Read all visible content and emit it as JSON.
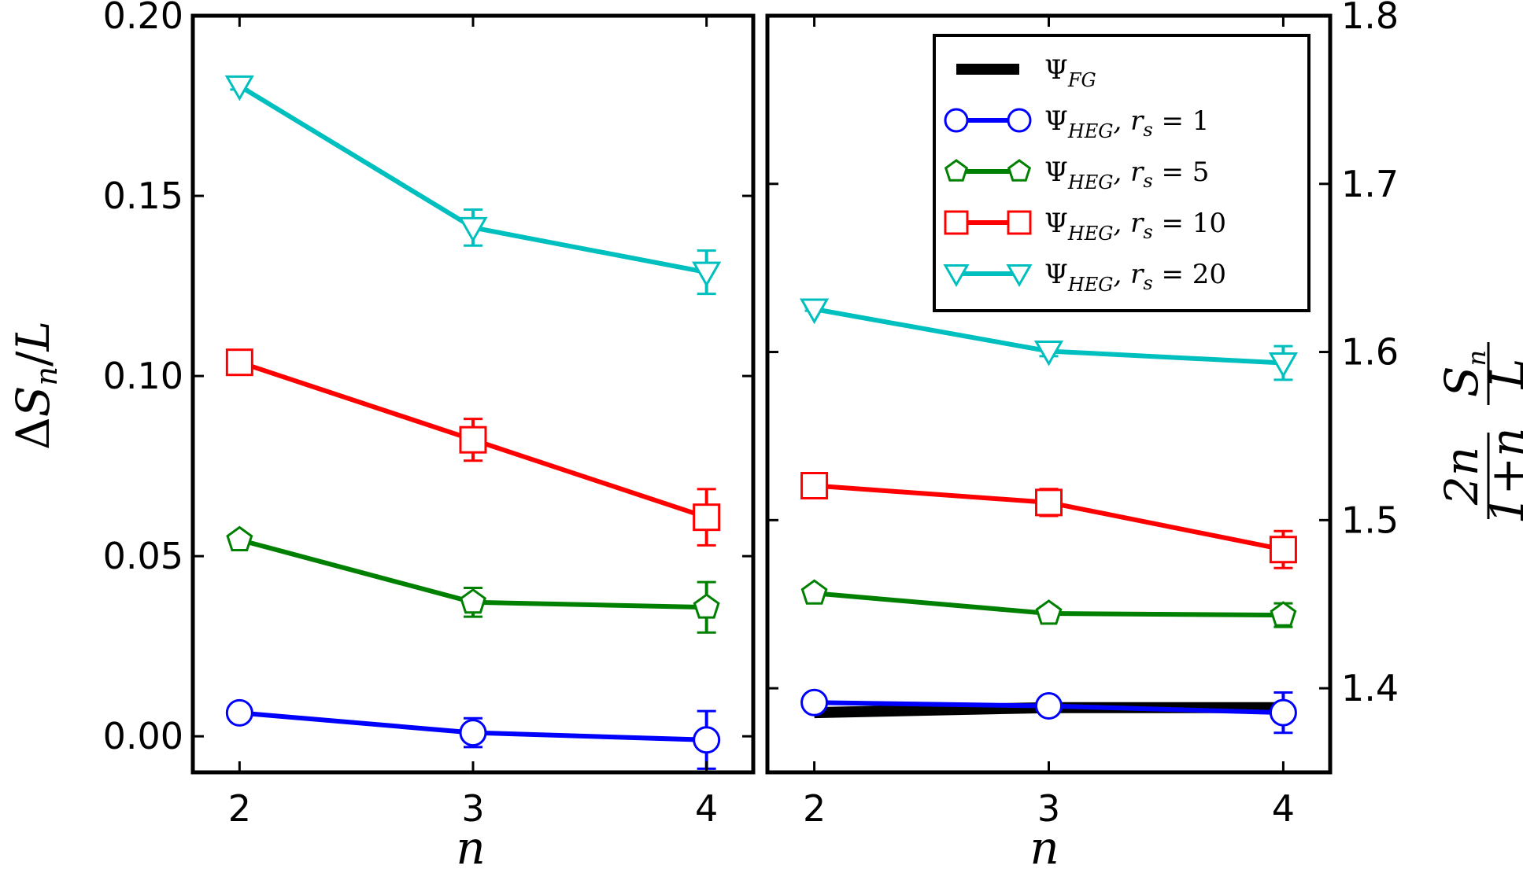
{
  "chart_data": [
    {
      "type": "line",
      "panel": "left",
      "xlabel": "n",
      "ylabel_parts": {
        "delta": "Δ",
        "s": "S",
        "sub": "n",
        "slash": "/",
        "l": "L"
      },
      "x": [
        2,
        3,
        4
      ],
      "xlim": [
        1.8,
        4.2
      ],
      "ylim": [
        -0.01,
        0.2
      ],
      "xticks": [
        "2",
        "3",
        "4"
      ],
      "yticks": [
        "0.00",
        "0.05",
        "0.10",
        "0.15",
        "0.20"
      ],
      "yticks_values": [
        0.0,
        0.05,
        0.1,
        0.15,
        0.2
      ],
      "series": [
        {
          "name": "Ψ_HEG, r_s = 1",
          "color": "#0000ff",
          "marker": "circle",
          "values": [
            0.0065,
            0.001,
            -0.001
          ],
          "errors": [
            0.001,
            0.004,
            0.008
          ]
        },
        {
          "name": "Ψ_HEG, r_s = 5",
          "color": "#008000",
          "marker": "pentagon",
          "values": [
            0.0545,
            0.0372,
            0.0358
          ],
          "errors": [
            0.001,
            0.004,
            0.007
          ]
        },
        {
          "name": "Ψ_HEG, r_s = 10",
          "color": "#ff0000",
          "marker": "square",
          "values": [
            0.1038,
            0.0823,
            0.0608
          ],
          "errors": [
            0.001,
            0.0058,
            0.0078
          ]
        },
        {
          "name": "Ψ_HEG, r_s = 20",
          "color": "#00bfbf",
          "marker": "triangle-down",
          "values": [
            0.1805,
            0.1412,
            0.1288
          ],
          "errors": [
            0.001,
            0.005,
            0.006
          ]
        }
      ]
    },
    {
      "type": "line",
      "panel": "right",
      "xlabel": "n",
      "ylabel_parts": {
        "num_left": "2n",
        "den_left": "1+n",
        "num_right_s": "S",
        "num_right_sub": "n",
        "den_right": "L"
      },
      "x": [
        2,
        3,
        4
      ],
      "xlim": [
        1.8,
        4.2
      ],
      "ylim": [
        1.35,
        1.8
      ],
      "xticks": [
        "2",
        "3",
        "4"
      ],
      "yticks": [
        "1.4",
        "1.5",
        "1.6",
        "1.7",
        "1.8"
      ],
      "yticks_values": [
        1.4,
        1.5,
        1.6,
        1.7,
        1.8
      ],
      "series": [
        {
          "name": "Ψ_FG",
          "color": "#000000",
          "marker": "none",
          "values": [
            1.3855,
            1.3885,
            1.3885
          ],
          "errors": [
            0,
            0,
            0
          ]
        },
        {
          "name": "Ψ_HEG, r_s = 1",
          "color": "#0000ff",
          "marker": "circle",
          "values": [
            1.3915,
            1.3895,
            1.3855
          ],
          "errors": [
            0.0005,
            0.004,
            0.012
          ]
        },
        {
          "name": "Ψ_HEG, r_s = 5",
          "color": "#008000",
          "marker": "pentagon",
          "values": [
            1.4565,
            1.4445,
            1.4435
          ],
          "errors": [
            0.001,
            0.004,
            0.007
          ]
        },
        {
          "name": "Ψ_HEG, r_s = 10",
          "color": "#ff0000",
          "marker": "square",
          "values": [
            1.5205,
            1.5105,
            1.4825
          ],
          "errors": [
            0.001,
            0.008,
            0.011
          ]
        },
        {
          "name": "Ψ_HEG, r_s = 20",
          "color": "#00bfbf",
          "marker": "triangle-down",
          "values": [
            1.6255,
            1.6005,
            1.5935
          ],
          "errors": [
            0.001,
            0.003,
            0.01
          ]
        }
      ]
    }
  ],
  "legend": {
    "placement": "top-right of right panel",
    "entries": [
      {
        "psi": "Ψ",
        "sub": "FG",
        "rs_label": "",
        "rs_value": "",
        "color": "#000000",
        "marker": "none"
      },
      {
        "psi": "Ψ",
        "sub": "HEG",
        "rs_label": ", r",
        "rs_value": "1",
        "color": "#0000ff",
        "marker": "circle"
      },
      {
        "psi": "Ψ",
        "sub": "HEG",
        "rs_label": ", r",
        "rs_value": "5",
        "color": "#008000",
        "marker": "pentagon"
      },
      {
        "psi": "Ψ",
        "sub": "HEG",
        "rs_label": ", r",
        "rs_value": "10",
        "color": "#ff0000",
        "marker": "square"
      },
      {
        "psi": "Ψ",
        "sub": "HEG",
        "rs_label": ", r",
        "rs_value": "20",
        "color": "#00bfbf",
        "marker": "triangle-down"
      }
    ],
    "rs_sub": "s",
    "equals": " = "
  }
}
